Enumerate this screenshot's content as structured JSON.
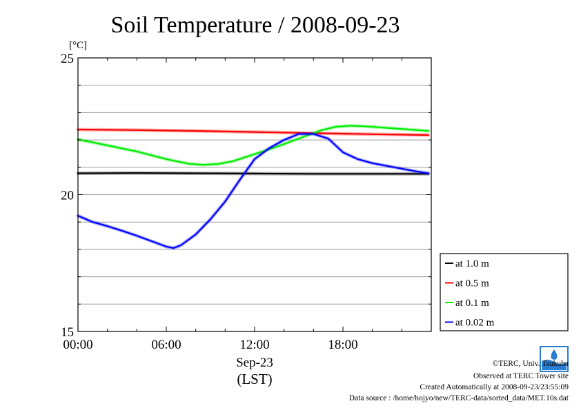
{
  "chart_data": {
    "type": "line",
    "title": "Soil Temperature / 2008-09-23",
    "ylabel": "[°C]",
    "xlabel": "Sep-23",
    "xlabel2": "(LST)",
    "xlim": [
      0,
      24
    ],
    "ylim": [
      15,
      25
    ],
    "xticks": [
      {
        "value": 0,
        "label": "00:00"
      },
      {
        "value": 6,
        "label": "06:00"
      },
      {
        "value": 12,
        "label": "12:00"
      },
      {
        "value": 18,
        "label": "18:00"
      }
    ],
    "yticks": [
      {
        "value": 15,
        "label": "15"
      },
      {
        "value": 20,
        "label": "20"
      },
      {
        "value": 25,
        "label": "25"
      }
    ],
    "grid": true,
    "legend_position": "right",
    "series": [
      {
        "name": "at 1.0 m",
        "color": "#000000",
        "x": [
          0,
          4,
          8,
          12,
          16,
          20,
          23.8
        ],
        "y": [
          20.78,
          20.79,
          20.78,
          20.77,
          20.76,
          20.76,
          20.76
        ]
      },
      {
        "name": "at 0.5 m",
        "color": "#ff0000",
        "x": [
          0,
          4,
          8,
          12,
          16,
          20,
          23.8
        ],
        "y": [
          22.38,
          22.36,
          22.33,
          22.29,
          22.25,
          22.21,
          22.18
        ]
      },
      {
        "name": "at 0.1 m",
        "color": "#00ee00",
        "x": [
          0,
          2,
          4,
          6,
          7.5,
          8.5,
          9.5,
          10.5,
          12,
          13.5,
          15,
          16.5,
          17.5,
          18.5,
          19.5,
          21,
          23.8
        ],
        "y": [
          22.02,
          21.8,
          21.58,
          21.3,
          21.13,
          21.09,
          21.12,
          21.22,
          21.48,
          21.75,
          22.05,
          22.35,
          22.48,
          22.52,
          22.5,
          22.44,
          22.33
        ]
      },
      {
        "name": "at 0.02 m",
        "color": "#0000ff",
        "x": [
          0,
          1,
          2,
          3,
          4,
          5,
          6,
          6.5,
          7,
          8,
          9,
          10,
          11,
          12,
          13,
          14,
          15,
          16,
          17,
          17.5,
          18,
          19,
          20,
          21,
          22,
          23,
          23.8
        ],
        "y": [
          19.23,
          19.0,
          18.85,
          18.68,
          18.5,
          18.3,
          18.1,
          18.05,
          18.15,
          18.55,
          19.1,
          19.75,
          20.55,
          21.3,
          21.7,
          22.0,
          22.22,
          22.22,
          22.05,
          21.8,
          21.55,
          21.3,
          21.15,
          21.05,
          20.95,
          20.85,
          20.78
        ]
      }
    ]
  },
  "credits": {
    "copyright": "©TERC, Univ. Tsukuba",
    "observed": "Observed at TERC Tower site",
    "created": "Created Automatically at 2008-09-23/23:55:09",
    "source": "Data source : /home/hojyo/new/TERC-data/sorted_data/MET.10s.dat"
  }
}
